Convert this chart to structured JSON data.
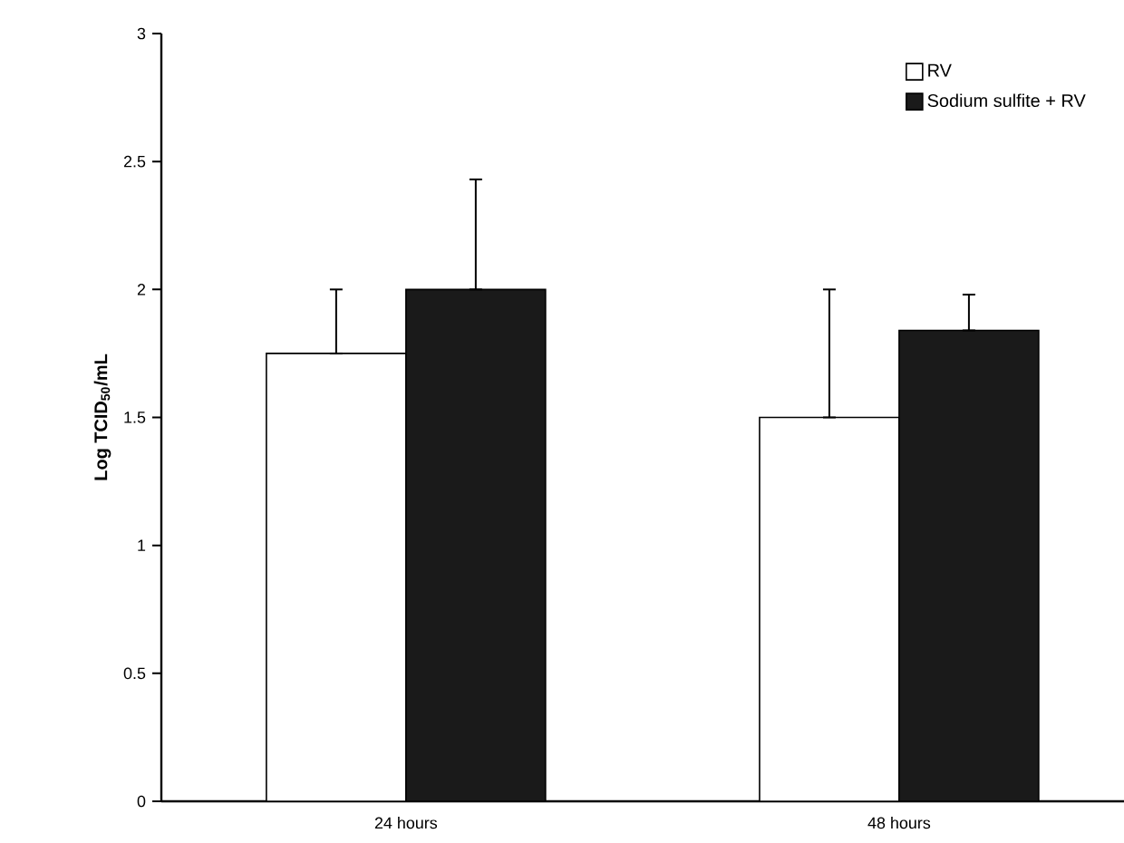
{
  "chart_data": {
    "type": "bar",
    "ylabel": "Log TCID$_{50}$/mL",
    "categories": [
      "24 hours",
      "48 hours"
    ],
    "series": [
      {
        "name": "RV",
        "color": "#ffffff",
        "values": [
          1.75,
          1.5
        ],
        "errors": [
          [
            1.75,
            2.0
          ],
          [
            1.5,
            2.0
          ]
        ]
      },
      {
        "name": "Sodium sulfite + RV",
        "color": "#1a1a1a",
        "values": [
          2.0,
          1.84
        ],
        "errors": [
          [
            2.0,
            2.43
          ],
          [
            1.84,
            1.98
          ]
        ]
      }
    ],
    "ylim": [
      0,
      3
    ],
    "yticks": [
      0,
      0.5,
      1,
      1.5,
      2,
      2.5,
      3
    ],
    "legend": "top right"
  }
}
